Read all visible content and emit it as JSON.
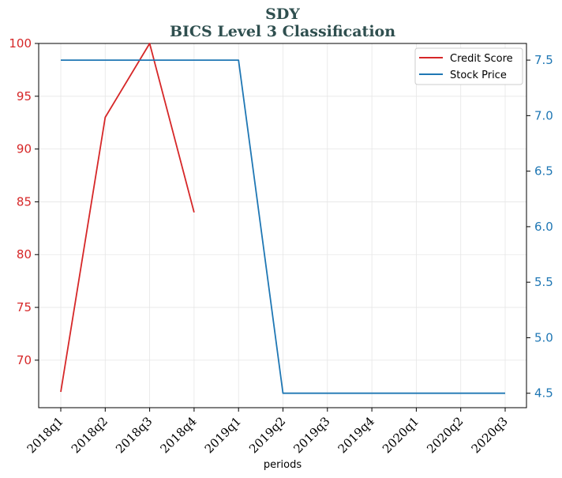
{
  "chart_data": {
    "type": "line",
    "title": "SDY",
    "subtitle": "BICS Level 3 Classification",
    "xlabel": "periods",
    "categories": [
      "2018q1",
      "2018q2",
      "2018q3",
      "2018q4",
      "2019q1",
      "2019q2",
      "2019q3",
      "2019q4",
      "2020q1",
      "2020q2",
      "2020q3"
    ],
    "left_axis": {
      "ylim": [
        65.5,
        100
      ],
      "ticks": [
        70,
        75,
        80,
        85,
        90,
        95,
        100
      ]
    },
    "right_axis": {
      "ylim": [
        4.37,
        7.65
      ],
      "ticks": [
        "4.5",
        "5.0",
        "5.5",
        "6.0",
        "6.5",
        "7.0",
        "7.5"
      ]
    },
    "grid": true,
    "legend_position": "top-right",
    "series": [
      {
        "name": "Credit Score",
        "axis": "left",
        "color": "#d62728",
        "values": [
          67,
          93,
          100,
          84,
          null,
          null,
          null,
          null,
          null,
          null,
          null
        ]
      },
      {
        "name": "Stock Price",
        "axis": "right",
        "color": "#1f77b4",
        "values": [
          7.5,
          7.5,
          7.5,
          7.5,
          7.5,
          4.5,
          4.5,
          4.5,
          4.5,
          4.5,
          4.5
        ]
      }
    ]
  }
}
